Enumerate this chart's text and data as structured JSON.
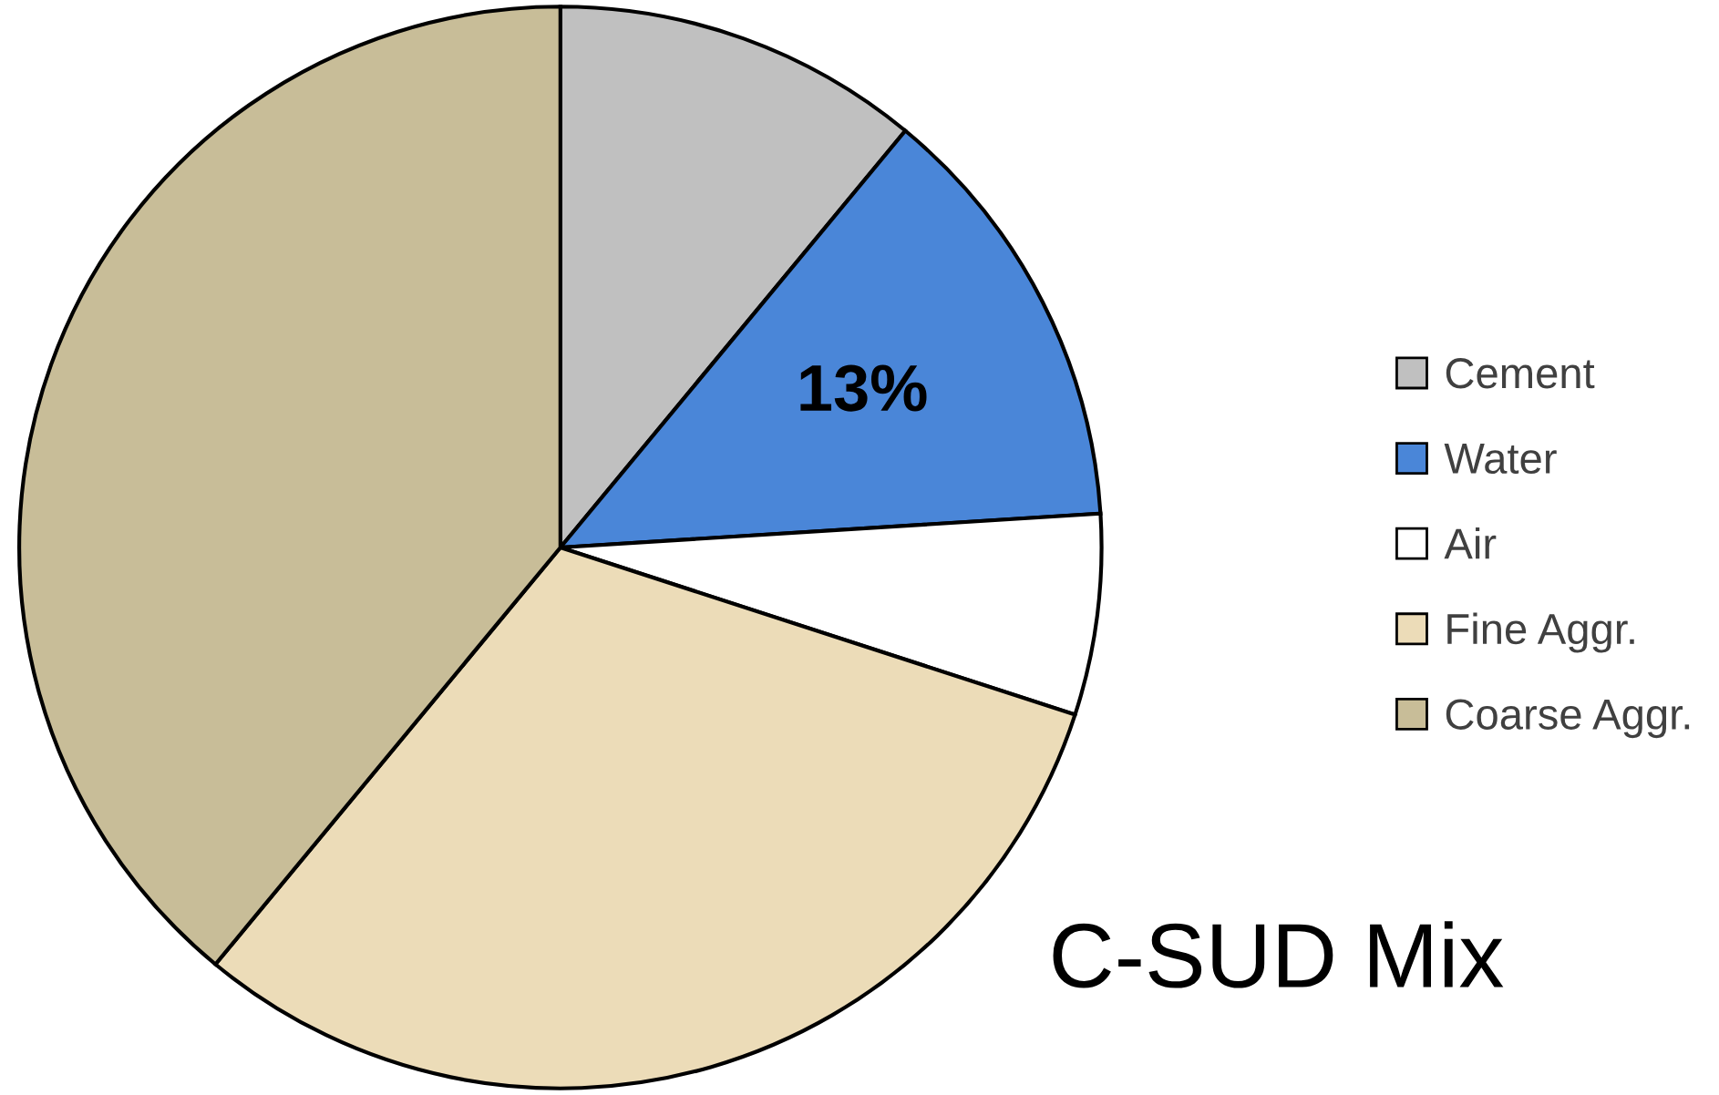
{
  "chart_data": {
    "type": "pie",
    "categories": [
      "Cement",
      "Water",
      "Air",
      "Fine Aggr.",
      "Coarse Aggr."
    ],
    "values": [
      11,
      13,
      6,
      31,
      39
    ],
    "colors": [
      "#c0c0c0",
      "#4a86d8",
      "#ffffff",
      "#ecdcb8",
      "#c8bd98"
    ],
    "value_labels": [
      null,
      "13%",
      null,
      null,
      null
    ],
    "legend": "right",
    "annotations": [
      "C-SUD Mix"
    ]
  }
}
